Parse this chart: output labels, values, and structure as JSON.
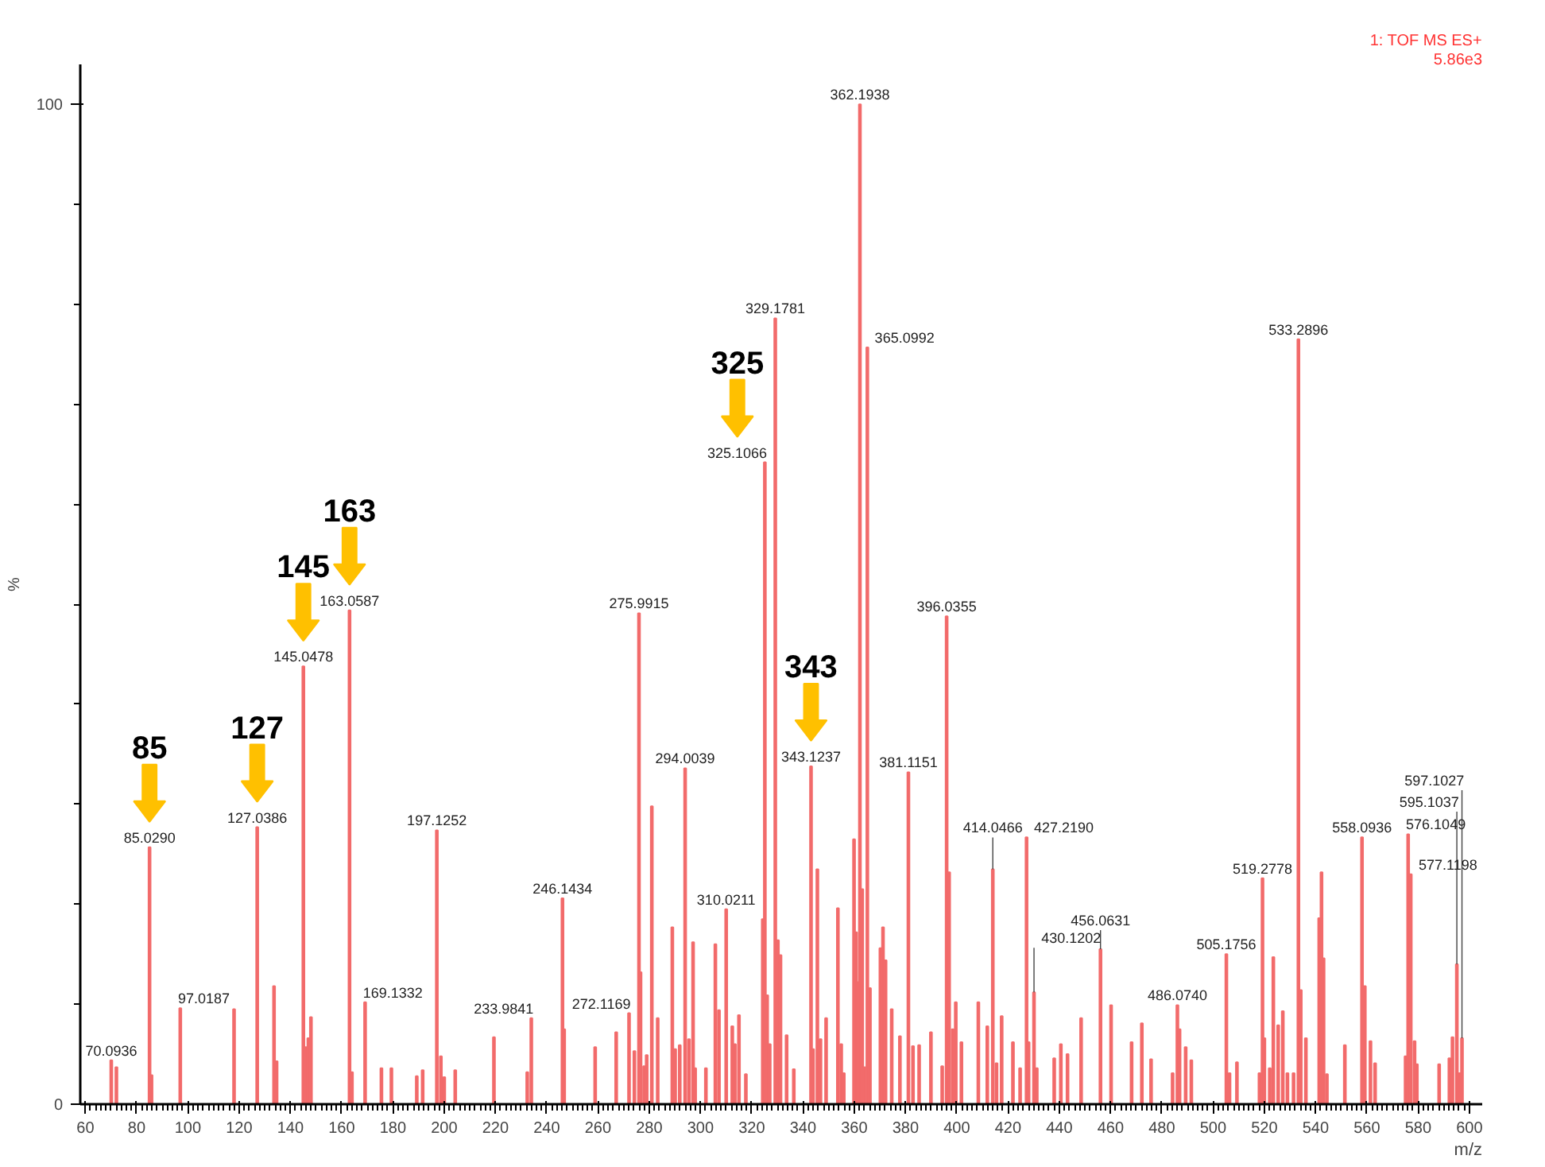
{
  "chart_data": {
    "type": "bar",
    "xlabel": "m/z",
    "ylabel": "%",
    "color": "#f26b6b",
    "x": [
      70.0936,
      72.1,
      85.029,
      85.8,
      97.0187,
      118,
      127.0386,
      133.6,
      134.6,
      145.0478,
      145.9,
      147,
      148,
      163.0587,
      164,
      169.1332,
      175.5,
      179.4,
      189.3,
      191.6,
      197.1252,
      198.7,
      200,
      204.3,
      219.4,
      232.4,
      233.9841,
      246.1434,
      246.8,
      258.9,
      267.1,
      272.1169,
      274.2,
      275.9915,
      276.6,
      278,
      279,
      281,
      283.3,
      289,
      290.1,
      291.9,
      294.0039,
      295.5,
      297.1,
      297.9,
      302.1,
      305.8,
      307.2,
      310.0211,
      312.4,
      313.4,
      315,
      317.7,
      324.3,
      325.1066,
      326,
      327,
      329.1781,
      330.2,
      331.2,
      333.6,
      336.4,
      343.1237,
      343.9,
      345.6,
      346.8,
      349,
      353.6,
      354.9,
      355.9,
      359.9,
      360.7,
      361.4,
      362.1938,
      363.1,
      363.9,
      365.0992,
      366.1,
      370.2,
      371.2,
      372.2,
      374.6,
      377.8,
      381.1151,
      382.9,
      385.3,
      389.9,
      394.3,
      396.0355,
      397,
      398.4,
      399.6,
      401.8,
      408.4,
      411.9,
      414.0466,
      415.5,
      417.5,
      421.9,
      424.7,
      427.219,
      428,
      430.1202,
      431.2,
      438,
      440.6,
      443.2,
      448.5,
      456.0631,
      460.2,
      468.2,
      472.2,
      475.8,
      484.2,
      486.074,
      486.9,
      489.3,
      491.5,
      505.1756,
      506.4,
      509.3,
      518.1,
      519.2778,
      520,
      522.1,
      523.5,
      525.4,
      527.2,
      529,
      531.4,
      533.2896,
      534.2,
      536.2,
      541.4,
      542.3,
      543.1,
      544.4,
      551.4,
      558.0936,
      559.2,
      561.4,
      563.2,
      575.1,
      576.1049,
      577.1198,
      578.6,
      579.5,
      588.2,
      592.2,
      593.4,
      595.1037,
      596.2,
      597.1027
    ],
    "values": [
      4.4,
      3.7,
      25.7,
      2.9,
      9.6,
      9.5,
      27.7,
      11.8,
      4.3,
      43.8,
      5.7,
      6.6,
      8.7,
      49.4,
      3.2,
      10.2,
      3.6,
      3.6,
      2.8,
      3.4,
      27.4,
      4.8,
      2.7,
      3.4,
      6.7,
      3.2,
      8.6,
      20.6,
      7.5,
      5.7,
      7.2,
      9.1,
      5.3,
      49.1,
      13.2,
      3.8,
      4.9,
      29.8,
      8.6,
      17.7,
      5.5,
      5.9,
      33.6,
      6.5,
      16.2,
      3.6,
      3.6,
      16,
      9.4,
      19.5,
      7.8,
      6,
      8.9,
      3,
      18.5,
      64.2,
      10.9,
      6,
      78.6,
      16.4,
      14.9,
      6.9,
      3.5,
      33.8,
      5.5,
      23.5,
      6.5,
      8.6,
      19.6,
      6,
      3.1,
      26.5,
      17.2,
      12.2,
      100,
      21.5,
      3.7,
      75.7,
      11.6,
      15.6,
      17.7,
      14.4,
      9.5,
      6.8,
      33.2,
      5.8,
      5.9,
      7.2,
      3.8,
      48.8,
      23.2,
      7.5,
      10.2,
      6.2,
      10.2,
      7.8,
      23.5,
      4.1,
      8.8,
      6.2,
      3.6,
      26.7,
      6.2,
      11.2,
      3.6,
      4.6,
      6,
      5,
      8.6,
      15.5,
      9.9,
      6.2,
      8.1,
      4.5,
      3.1,
      9.9,
      7.5,
      5.7,
      4.4,
      15,
      3.1,
      4.2,
      3.1,
      22.6,
      6.6,
      3.6,
      14.7,
      7.9,
      9.3,
      3.1,
      3.1,
      76.5,
      11.4,
      6.6,
      18.6,
      23.2,
      14.6,
      3,
      5.9,
      26.7,
      11.8,
      6.3,
      4.1,
      4.8,
      27,
      23,
      6.3,
      4,
      4,
      4.6,
      6.7,
      14,
      3.1,
      6.6
    ],
    "xlim": [
      58,
      605
    ],
    "ylim": [
      0,
      104
    ],
    "xticks": [
      60,
      80,
      100,
      120,
      140,
      160,
      180,
      200,
      220,
      240,
      260,
      280,
      300,
      320,
      340,
      360,
      380,
      400,
      420,
      440,
      460,
      480,
      500,
      520,
      540,
      560,
      580,
      600
    ],
    "yticks": [
      0,
      100
    ],
    "annotations": [
      "1: TOF MS ES+",
      "5.86e3",
      {
        "text": "70.0936",
        "x": 70.0936,
        "y": 4.4
      },
      {
        "text": "85.0290",
        "x": 85.029,
        "y": 25.7
      },
      {
        "text": "97.0187",
        "x": 97.0187,
        "y": 9.6
      },
      {
        "text": "127.0386",
        "x": 127.0386,
        "y": 27.7
      },
      {
        "text": "145.0478",
        "x": 145.0478,
        "y": 43.8
      },
      {
        "text": "163.0587",
        "x": 163.0587,
        "y": 49.4
      },
      {
        "text": "169.1332",
        "x": 169.1332,
        "y": 10.2
      },
      {
        "text": "197.1252",
        "x": 197.1252,
        "y": 27.4
      },
      {
        "text": "233.9841",
        "x": 233.9841,
        "y": 8.6
      },
      {
        "text": "246.1434",
        "x": 246.1434,
        "y": 20.6
      },
      {
        "text": "272.1169",
        "x": 272.1169,
        "y": 9.1
      },
      {
        "text": "275.9915",
        "x": 275.9915,
        "y": 49.1
      },
      {
        "text": "294.0039",
        "x": 294.0039,
        "y": 33.6
      },
      {
        "text": "310.0211",
        "x": 310.0211,
        "y": 19.5
      },
      {
        "text": "325.1066",
        "x": 325.1066,
        "y": 64.2
      },
      {
        "text": "329.1781",
        "x": 329.1781,
        "y": 78.6
      },
      {
        "text": "343.1237",
        "x": 343.1237,
        "y": 33.8
      },
      {
        "text": "362.1938",
        "x": 362.1938,
        "y": 100
      },
      {
        "text": "365.0992",
        "x": 365.0992,
        "y": 75.7
      },
      {
        "text": "381.1151",
        "x": 381.1151,
        "y": 33.2
      },
      {
        "text": "396.0355",
        "x": 396.0355,
        "y": 48.8
      },
      {
        "text": "414.0466",
        "x": 414.0466,
        "y": 23.5
      },
      {
        "text": "427.2190",
        "x": 427.219,
        "y": 26.7
      },
      {
        "text": "430.1202",
        "x": 430.1202,
        "y": 11.2
      },
      {
        "text": "456.0631",
        "x": 456.0631,
        "y": 15.5
      },
      {
        "text": "486.0740",
        "x": 486.074,
        "y": 9.9
      },
      {
        "text": "505.1756",
        "x": 505.1756,
        "y": 15
      },
      {
        "text": "519.2778",
        "x": 519.2778,
        "y": 22.6
      },
      {
        "text": "533.2896",
        "x": 533.2896,
        "y": 76.5
      },
      {
        "text": "558.0936",
        "x": 558.0936,
        "y": 26.7
      },
      {
        "text": "576.1049",
        "x": 576.1049,
        "y": 27
      },
      {
        "text": "577.1198",
        "x": 577.1198,
        "y": 23
      },
      {
        "text": "595.1037",
        "x": 595.1037,
        "y": 14
      },
      {
        "text": "597.1027",
        "x": 597.1027,
        "y": 6.6
      },
      {
        "text": "85",
        "x": 85.029,
        "y": 25.7
      },
      {
        "text": "127",
        "x": 127.0386,
        "y": 27.7
      },
      {
        "text": "145",
        "x": 145.0478,
        "y": 43.8
      },
      {
        "text": "163",
        "x": 163.0587,
        "y": 49.4
      },
      {
        "text": "325",
        "x": 325.1066,
        "y": 64.2
      },
      {
        "text": "343",
        "x": 343.1237,
        "y": 33.8
      }
    ]
  }
}
